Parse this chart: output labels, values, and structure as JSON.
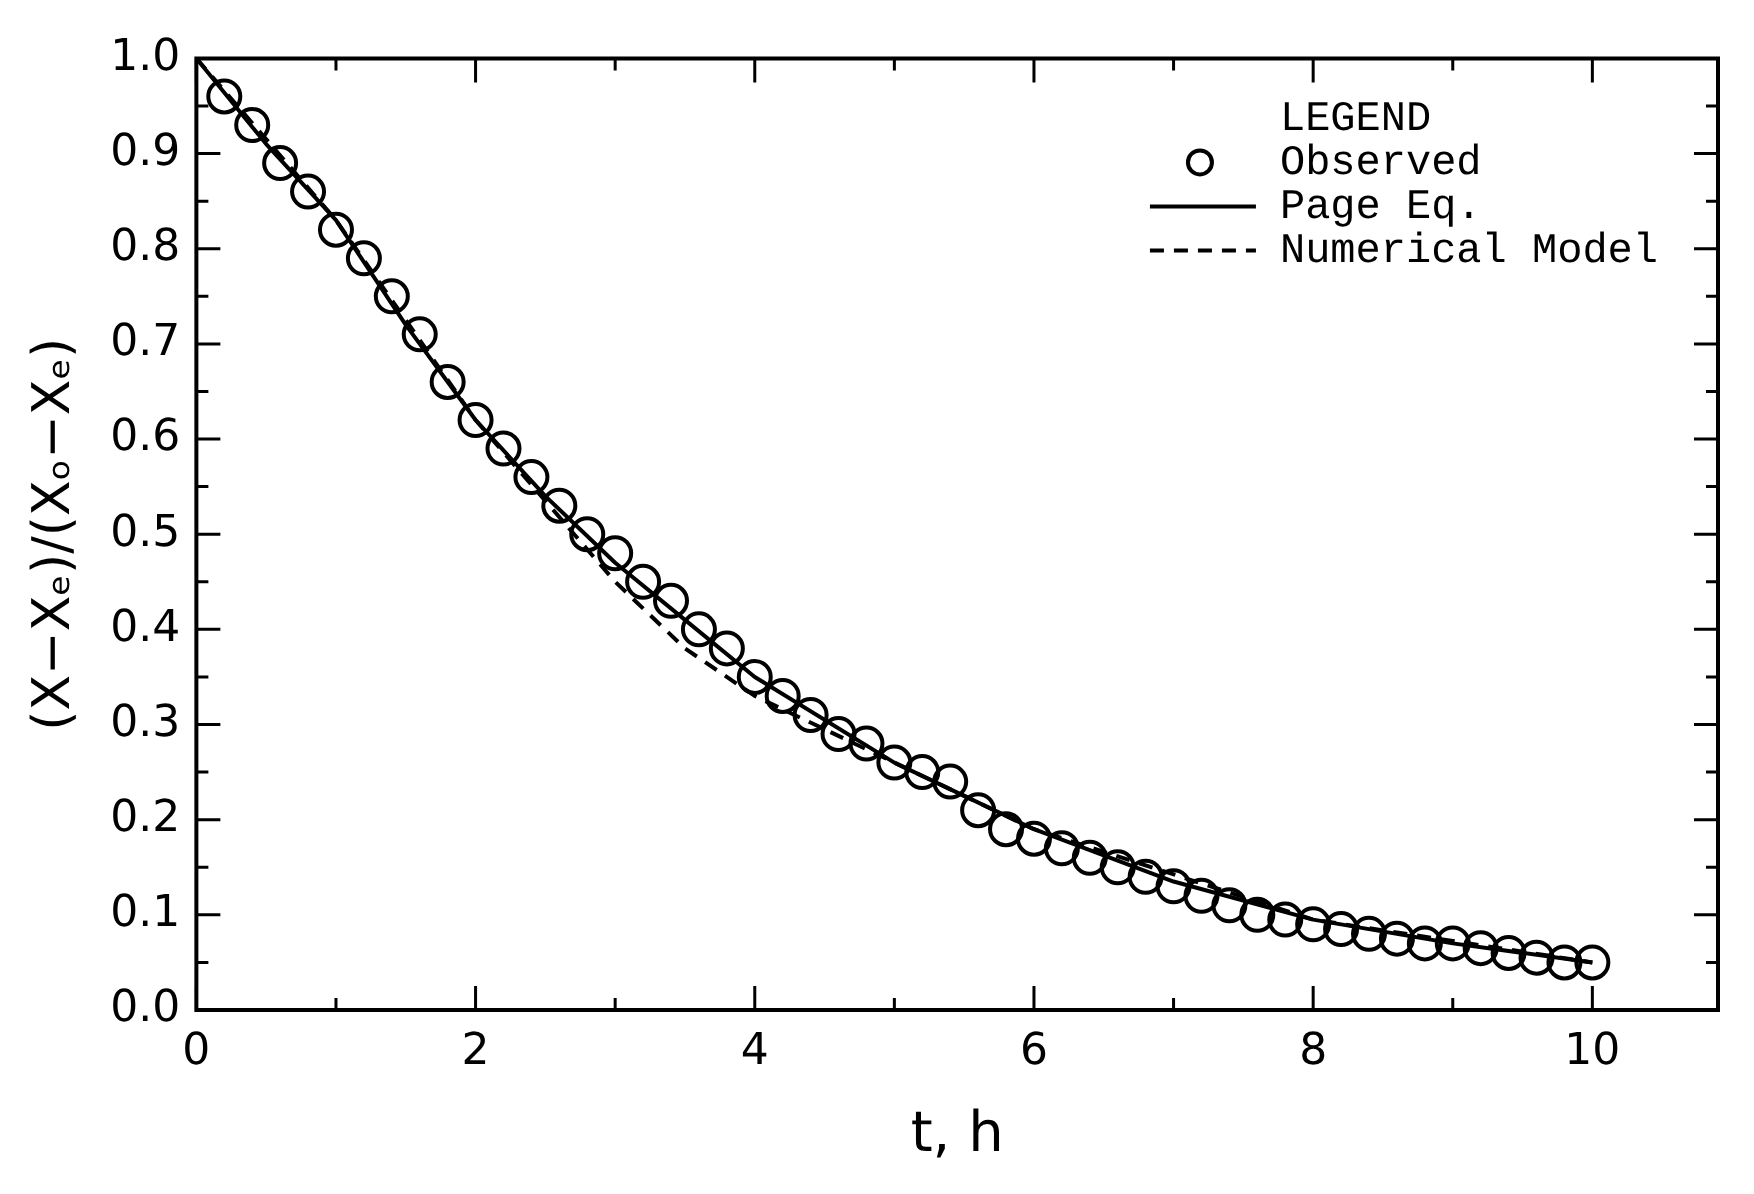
{
  "chart_data": {
    "type": "scatter",
    "xlabel": "t, h",
    "ylabel": "(X−Xₑ)/(Xₒ−Xₑ)",
    "legend_title": "LEGEND",
    "legend": "top right",
    "grid": false,
    "xlim": [
      0,
      10.9
    ],
    "xticks": [
      0,
      {
        "value": 1,
        "label": null
      },
      2,
      {
        "value": 3,
        "label": null
      },
      4,
      {
        "value": 5,
        "label": null
      },
      6,
      {
        "value": 7,
        "label": null
      },
      8,
      {
        "value": 9,
        "label": null
      },
      10
    ],
    "ylim": [
      0,
      1
    ],
    "yticks": [
      {
        "value": 0,
        "label": "0.0"
      },
      {
        "value": 0.1,
        "label": "0.1"
      },
      {
        "value": 0.2,
        "label": "0.2"
      },
      {
        "value": 0.3,
        "label": "0.3"
      },
      {
        "value": 0.4,
        "label": "0.4"
      },
      {
        "value": 0.5,
        "label": "0.5"
      },
      {
        "value": 0.6,
        "label": "0.6"
      },
      {
        "value": 0.7,
        "label": "0.7"
      },
      {
        "value": 0.8,
        "label": "0.8"
      },
      {
        "value": 0.9,
        "label": "0.9"
      },
      {
        "value": 1,
        "label": "1.0"
      }
    ],
    "series": [
      {
        "name": "Observed",
        "marker": "circle",
        "color": "#000000",
        "x": [
          0.2,
          0.4,
          0.6,
          0.8,
          1.0,
          1.2,
          1.4,
          1.6,
          1.8,
          2.0,
          2.2,
          2.4,
          2.6,
          2.8,
          3.0,
          3.2,
          3.4,
          3.6,
          3.8,
          4.0,
          4.2,
          4.4,
          4.6,
          4.8,
          5.0,
          5.2,
          5.4,
          5.6,
          5.8,
          6.0,
          6.2,
          6.4,
          6.6,
          6.8,
          7.0,
          7.2,
          7.4,
          7.6,
          7.8,
          8.0,
          8.2,
          8.4,
          8.6,
          8.8,
          9.0,
          9.2,
          9.4,
          9.6,
          9.8,
          10.0
        ],
        "values": [
          0.96,
          0.93,
          0.89,
          0.86,
          0.82,
          0.79,
          0.75,
          0.71,
          0.66,
          0.62,
          0.59,
          0.56,
          0.53,
          0.5,
          0.48,
          0.45,
          0.43,
          0.4,
          0.38,
          0.35,
          0.33,
          0.31,
          0.29,
          0.28,
          0.26,
          0.25,
          0.24,
          0.21,
          0.19,
          0.18,
          0.17,
          0.16,
          0.15,
          0.14,
          0.13,
          0.12,
          0.11,
          0.1,
          0.095,
          0.09,
          0.085,
          0.08,
          0.075,
          0.07,
          0.07,
          0.065,
          0.06,
          0.055,
          0.05,
          0.05
        ]
      },
      {
        "name": "Page Eq.",
        "type": "line",
        "marker": "none",
        "line_style": "solid",
        "color": "#000000",
        "x": [
          0,
          0.5,
          1,
          1.5,
          2,
          2.5,
          3,
          3.5,
          4,
          5,
          6,
          7,
          8,
          9,
          10
        ],
        "values": [
          1.0,
          0.91,
          0.83,
          0.72,
          0.62,
          0.54,
          0.47,
          0.41,
          0.35,
          0.26,
          0.19,
          0.135,
          0.095,
          0.07,
          0.05
        ]
      },
      {
        "name": "Numerical Model",
        "type": "line",
        "marker": "none",
        "line_style": "dashed",
        "color": "#000000",
        "x": [
          0,
          1,
          2,
          3,
          3.5,
          4,
          5,
          6,
          8,
          10
        ],
        "values": [
          1.0,
          0.83,
          0.62,
          0.45,
          0.38,
          0.33,
          0.26,
          0.19,
          0.095,
          0.05
        ]
      }
    ]
  }
}
